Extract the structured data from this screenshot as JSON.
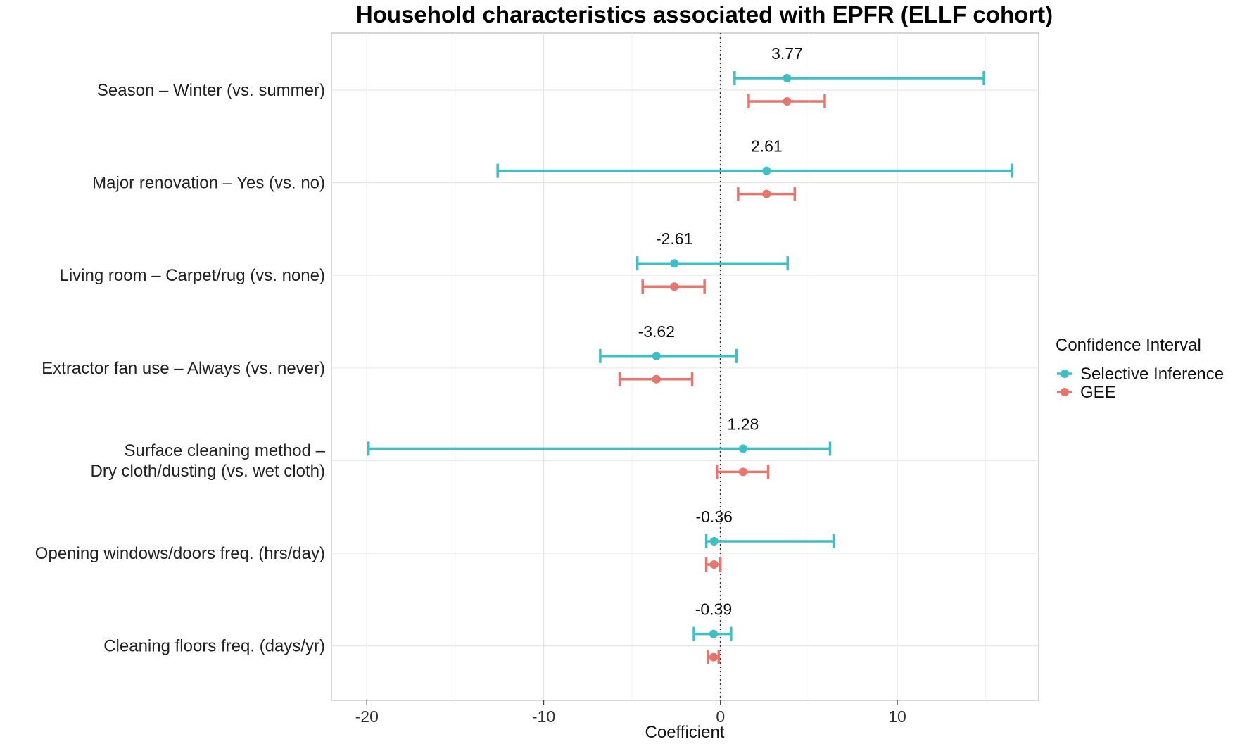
{
  "chart_data": {
    "type": "forest",
    "title": "Household characteristics associated with EPFR (ELLF cohort)",
    "xlabel": "Coefficient",
    "ylabel": "",
    "xlim": [
      -22,
      18
    ],
    "xticks": [
      -20,
      -10,
      0,
      10
    ],
    "xtick_labels": [
      "-20",
      "-10",
      "0",
      "10"
    ],
    "reference_line": 0,
    "grid": true,
    "legend": {
      "title": "Confidence Interval",
      "position": "right",
      "entries": [
        "Selective Inference",
        "GEE"
      ]
    },
    "colors": {
      "selective": "#3dbfc6",
      "gee": "#e8756c"
    },
    "categories": [
      {
        "label": [
          "Season – Winter (vs. summer)"
        ],
        "estimate": 3.77,
        "estimate_label": "3.77"
      },
      {
        "label": [
          "Major renovation – Yes (vs. no)"
        ],
        "estimate": 2.61,
        "estimate_label": "2.61"
      },
      {
        "label": [
          "Living room – Carpet/rug (vs. none)"
        ],
        "estimate": -2.61,
        "estimate_label": "-2.61"
      },
      {
        "label": [
          "Extractor fan use – Always (vs. never)"
        ],
        "estimate": -3.62,
        "estimate_label": "-3.62"
      },
      {
        "label": [
          "Surface cleaning method –",
          "Dry cloth/dusting (vs. wet cloth)"
        ],
        "estimate": 1.28,
        "estimate_label": "1.28"
      },
      {
        "label": [
          "Opening windows/doors freq. (hrs/day)"
        ],
        "estimate": -0.36,
        "estimate_label": "-0.36"
      },
      {
        "label": [
          "Cleaning floors freq. (days/yr)"
        ],
        "estimate": -0.39,
        "estimate_label": "-0.39"
      }
    ],
    "series": [
      {
        "name": "Selective Inference",
        "estimates": [
          3.77,
          2.61,
          -2.61,
          -3.62,
          1.28,
          -0.36,
          -0.39
        ],
        "lower": [
          0.8,
          -12.6,
          -4.7,
          -6.8,
          -19.9,
          -0.8,
          -1.5
        ],
        "upper": [
          14.9,
          16.5,
          3.8,
          0.9,
          6.2,
          6.4,
          0.6
        ]
      },
      {
        "name": "GEE",
        "estimates": [
          3.77,
          2.61,
          -2.61,
          -3.62,
          1.28,
          -0.36,
          -0.39
        ],
        "lower": [
          1.6,
          1.0,
          -4.4,
          -5.7,
          -0.2,
          -0.8,
          -0.7
        ],
        "upper": [
          5.9,
          4.2,
          -0.9,
          -1.6,
          2.7,
          0.0,
          -0.1
        ]
      }
    ]
  }
}
